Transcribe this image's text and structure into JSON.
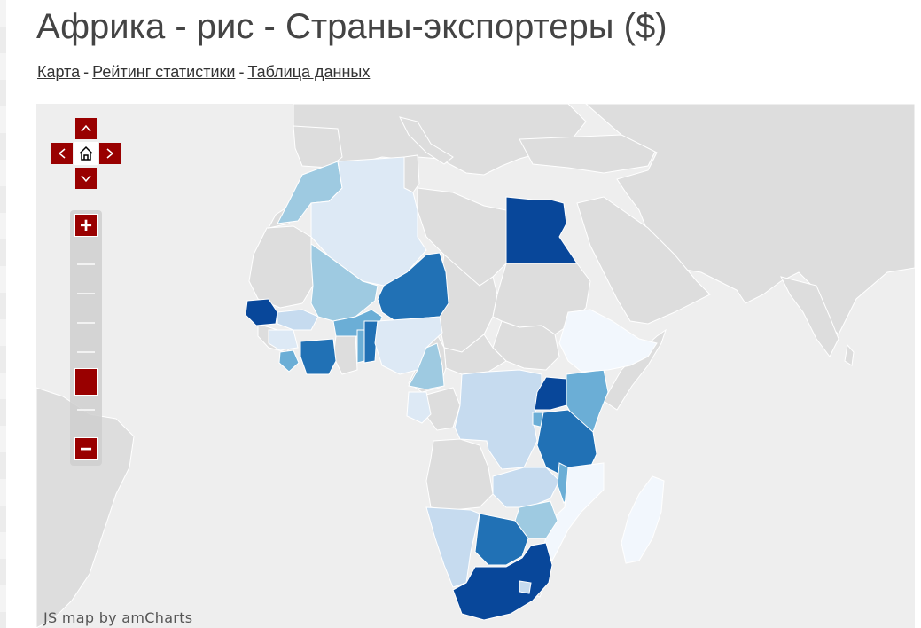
{
  "page": {
    "title": "Африка - рис - Страны-экспортеры ($)"
  },
  "nav": {
    "links": [
      "Карта",
      "Рейтинг статистики",
      "Таблица данных"
    ],
    "separator": "-"
  },
  "map": {
    "credit": "JS map by amCharts",
    "colors": {
      "ocean": "#eeeeee",
      "no_data": "#dddddd",
      "outside_region": "#dddddd",
      "border": "#ffffff",
      "scale_lightest": "#f2f7fd",
      "scale_light": "#c6dbef",
      "scale_mid_light": "#9ecae1",
      "scale_mid": "#6baed6",
      "scale_dark": "#2171b5",
      "scale_darkest": "#08479a",
      "controls": "#990000"
    },
    "controls": {
      "pan_up_icon": "chevron-up-icon",
      "pan_down_icon": "chevron-down-icon",
      "pan_left_icon": "chevron-left-icon",
      "pan_right_icon": "chevron-right-icon",
      "home_icon": "home-icon",
      "zoom_in_label": "+",
      "zoom_out_label": "−",
      "zoom_level_fraction": 0.25
    }
  }
}
